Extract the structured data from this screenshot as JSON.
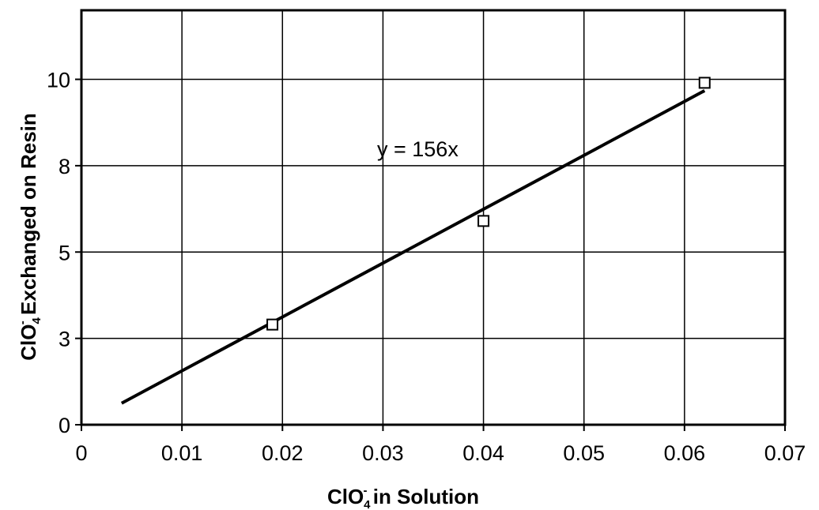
{
  "chart_data": {
    "type": "scatter",
    "title": "",
    "xlabel": {
      "prefix": "ClO",
      "sub": "4",
      "sup": "-",
      "suffix": " in Solution"
    },
    "ylabel": {
      "prefix": "ClO",
      "sub": "4",
      "sup": "-",
      "suffix": " Exchanged on Resin"
    },
    "xlim": [
      0,
      0.07
    ],
    "ylim": [
      0,
      12
    ],
    "x_ticks": [
      0,
      0.01,
      0.02,
      0.03,
      0.04,
      0.05,
      0.06,
      0.07
    ],
    "x_tick_labels": [
      "0",
      "0.01",
      "0.02",
      "0.03",
      "0.04",
      "0.05",
      "0.06",
      "0.07"
    ],
    "y_ticks": [
      0,
      2.5,
      5,
      7.5,
      10
    ],
    "y_tick_labels": [
      "0",
      "3",
      "5",
      "8",
      "10"
    ],
    "grid": true,
    "legend": "none",
    "series": [
      {
        "marker": "open-square",
        "points": [
          {
            "x": 0.019,
            "y": 2.9
          },
          {
            "x": 0.04,
            "y": 5.9
          },
          {
            "x": 0.062,
            "y": 9.9
          }
        ]
      }
    ],
    "trendline": {
      "slope": 156,
      "x_range": [
        0.004,
        0.062
      ],
      "equation_label": "y = 156x"
    },
    "colors": {
      "line": "#000000",
      "grid": "#000000",
      "marker": "#000000",
      "background": "#ffffff"
    }
  }
}
